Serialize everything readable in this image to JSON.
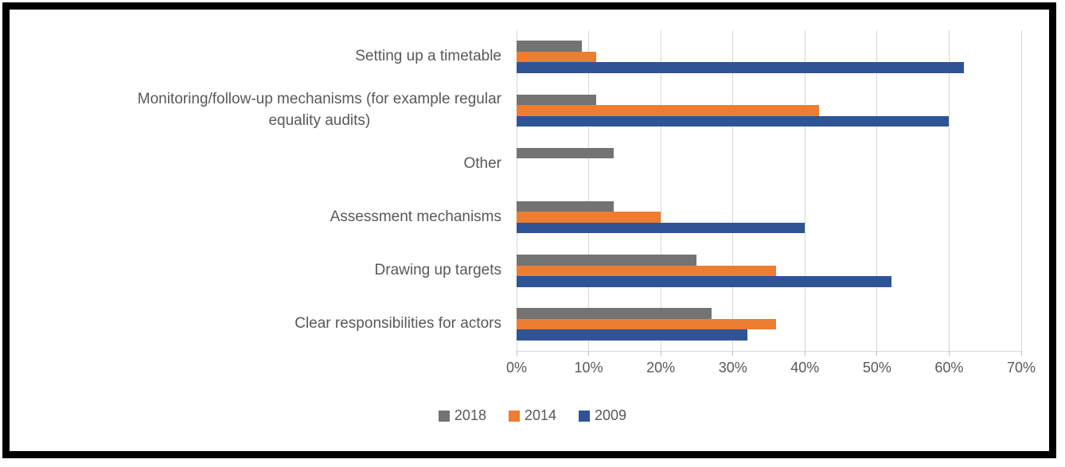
{
  "frame": {
    "border_color": "#000000",
    "background_color": "#FFFFFF"
  },
  "chart_data": {
    "type": "bar",
    "orientation": "horizontal",
    "title": "",
    "categories": [
      "Setting up a timetable",
      "Monitoring/follow-up mechanisms (for example regular\nequality audits)",
      "Other",
      "Assessment mechanisms",
      "Drawing up targets",
      "Clear responsibilities for actors"
    ],
    "series": [
      {
        "name": "2018",
        "color": "#737373",
        "values": [
          9,
          11,
          13.5,
          13.5,
          25,
          27
        ]
      },
      {
        "name": "2014",
        "color": "#ED7D31",
        "values": [
          11,
          42,
          0,
          20,
          36,
          36
        ]
      },
      {
        "name": "2009",
        "color": "#2F5496",
        "values": [
          62,
          60,
          0,
          40,
          52,
          32
        ]
      }
    ],
    "x_axis": {
      "min": 0,
      "max": 70,
      "unit": "%",
      "ticks": [
        "0%",
        "10%",
        "20%",
        "30%",
        "40%",
        "50%",
        "60%",
        "70%"
      ]
    },
    "grid": true,
    "legend": {
      "position": "bottom",
      "entries": [
        "2018",
        "2014",
        "2009"
      ]
    },
    "style": {
      "grid_color": "#D9D9D9",
      "tick_color": "#BFBFBF",
      "label_color": "#595959"
    }
  }
}
